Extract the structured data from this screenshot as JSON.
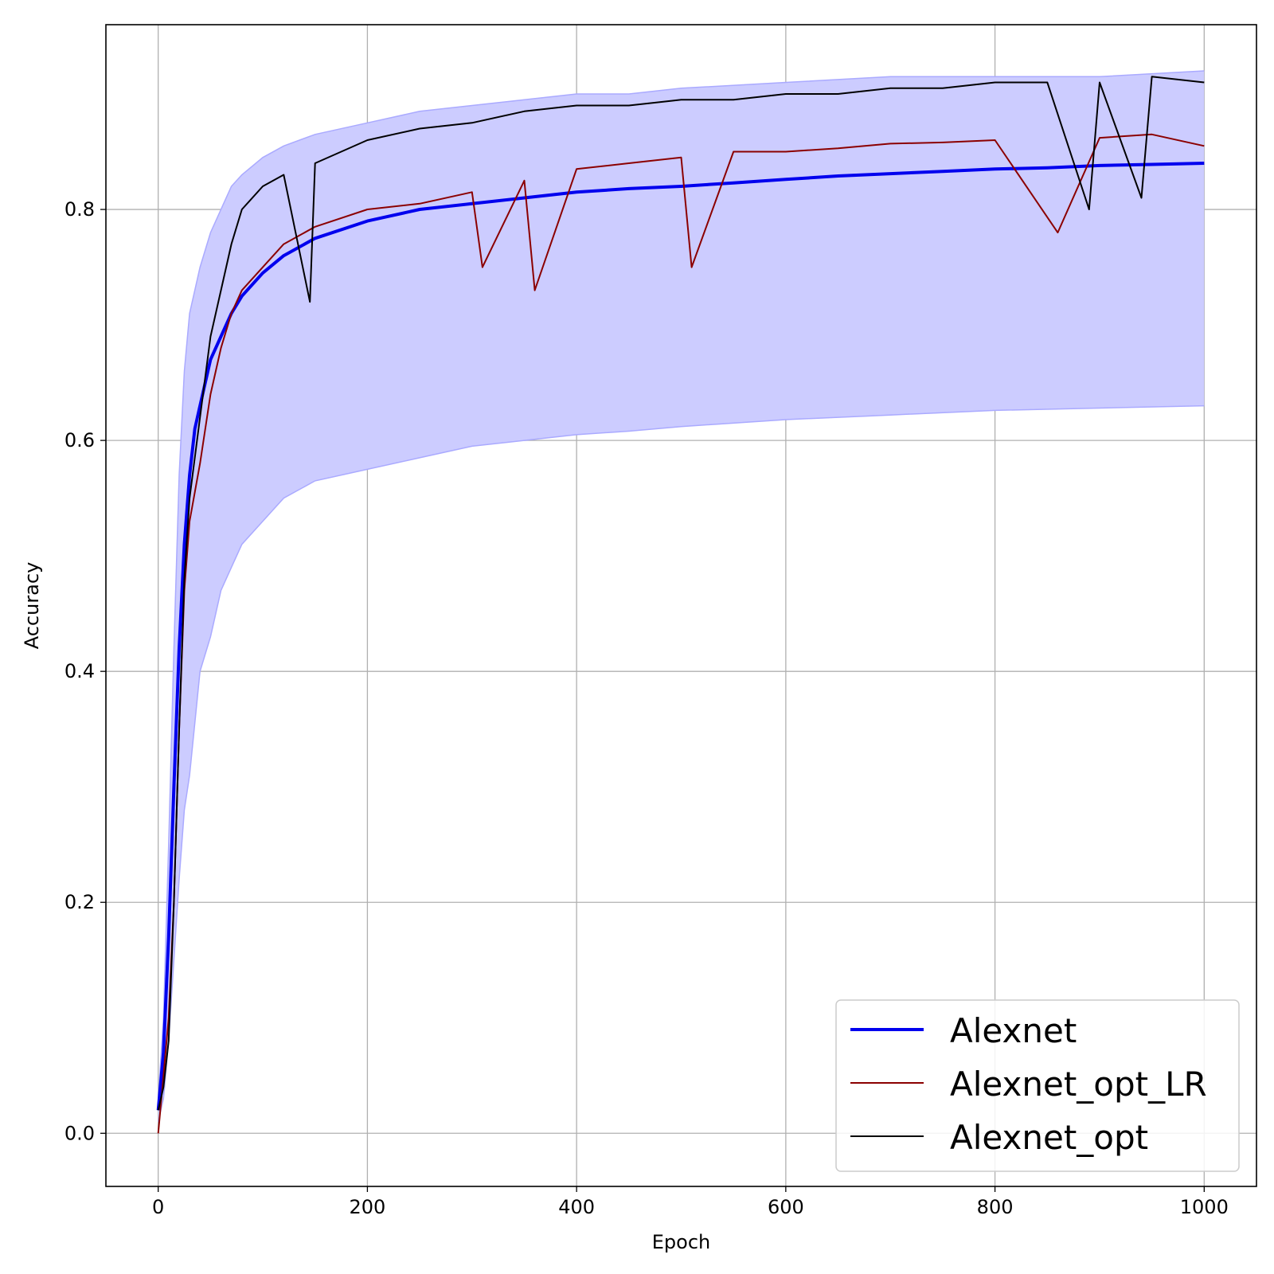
{
  "chart_data": {
    "type": "line",
    "title": "",
    "xlabel": "Epoch",
    "ylabel": "Accuracy",
    "xlim": [
      -50,
      1050
    ],
    "ylim": [
      -0.046,
      0.96
    ],
    "xticks": [
      0,
      200,
      400,
      600,
      800,
      1000
    ],
    "xtick_labels": [
      "0",
      "200",
      "400",
      "600",
      "800",
      "1000"
    ],
    "yticks": [
      0.0,
      0.2,
      0.4,
      0.6,
      0.8
    ],
    "ytick_labels": [
      "0.0",
      "0.2",
      "0.4",
      "0.6",
      "0.8"
    ],
    "grid": true,
    "legend_position": "bottom-right",
    "band": {
      "description": "shaded min-max range around Alexnet",
      "color": "#ccccff",
      "edge_color": "#aaaaff",
      "x": [
        0,
        5,
        10,
        15,
        20,
        25,
        30,
        40,
        50,
        60,
        70,
        80,
        100,
        120,
        150,
        200,
        250,
        300,
        350,
        400,
        450,
        500,
        600,
        700,
        800,
        900,
        1000
      ],
      "upper": [
        0.03,
        0.1,
        0.25,
        0.42,
        0.57,
        0.66,
        0.71,
        0.75,
        0.78,
        0.8,
        0.82,
        0.83,
        0.845,
        0.855,
        0.865,
        0.875,
        0.885,
        0.89,
        0.895,
        0.9,
        0.9,
        0.905,
        0.91,
        0.915,
        0.915,
        0.915,
        0.92
      ],
      "lower": [
        0.01,
        0.03,
        0.08,
        0.15,
        0.22,
        0.28,
        0.31,
        0.4,
        0.43,
        0.47,
        0.49,
        0.51,
        0.53,
        0.55,
        0.565,
        0.575,
        0.585,
        0.595,
        0.6,
        0.605,
        0.608,
        0.612,
        0.618,
        0.622,
        0.626,
        0.628,
        0.63
      ]
    },
    "series": [
      {
        "name": "Alexnet",
        "color": "#0000ee",
        "x": [
          0,
          5,
          10,
          15,
          20,
          25,
          30,
          35,
          40,
          50,
          60,
          70,
          80,
          100,
          120,
          150,
          200,
          250,
          300,
          350,
          400,
          450,
          500,
          550,
          600,
          650,
          700,
          750,
          800,
          850,
          900,
          950,
          1000
        ],
        "values": [
          0.02,
          0.07,
          0.17,
          0.3,
          0.42,
          0.51,
          0.57,
          0.61,
          0.63,
          0.67,
          0.69,
          0.71,
          0.725,
          0.745,
          0.76,
          0.775,
          0.79,
          0.8,
          0.805,
          0.81,
          0.815,
          0.818,
          0.82,
          0.823,
          0.826,
          0.829,
          0.831,
          0.833,
          0.835,
          0.836,
          0.838,
          0.839,
          0.84
        ]
      },
      {
        "name": "Alexnet_opt_LR",
        "color": "#8b0000",
        "x": [
          0,
          5,
          10,
          15,
          20,
          25,
          30,
          40,
          50,
          60,
          70,
          80,
          100,
          120,
          150,
          200,
          250,
          300,
          310,
          350,
          360,
          400,
          450,
          500,
          510,
          550,
          600,
          650,
          700,
          750,
          800,
          860,
          900,
          950,
          1000
        ],
        "values": [
          0.0,
          0.05,
          0.1,
          0.2,
          0.35,
          0.47,
          0.53,
          0.58,
          0.64,
          0.68,
          0.71,
          0.73,
          0.75,
          0.77,
          0.785,
          0.8,
          0.805,
          0.815,
          0.75,
          0.825,
          0.73,
          0.835,
          0.84,
          0.845,
          0.75,
          0.85,
          0.85,
          0.853,
          0.857,
          0.858,
          0.86,
          0.78,
          0.862,
          0.865,
          0.855
        ]
      },
      {
        "name": "Alexnet_opt",
        "color": "#000000",
        "x": [
          0,
          5,
          10,
          15,
          20,
          25,
          30,
          40,
          50,
          60,
          70,
          80,
          100,
          120,
          145,
          150,
          200,
          250,
          300,
          350,
          400,
          450,
          500,
          550,
          600,
          650,
          700,
          750,
          800,
          850,
          890,
          900,
          940,
          950,
          1000
        ],
        "values": [
          0.02,
          0.04,
          0.08,
          0.2,
          0.35,
          0.48,
          0.55,
          0.62,
          0.69,
          0.73,
          0.77,
          0.8,
          0.82,
          0.83,
          0.72,
          0.84,
          0.86,
          0.87,
          0.875,
          0.885,
          0.89,
          0.89,
          0.895,
          0.895,
          0.9,
          0.9,
          0.905,
          0.905,
          0.91,
          0.91,
          0.8,
          0.91,
          0.81,
          0.915,
          0.91
        ]
      }
    ]
  }
}
